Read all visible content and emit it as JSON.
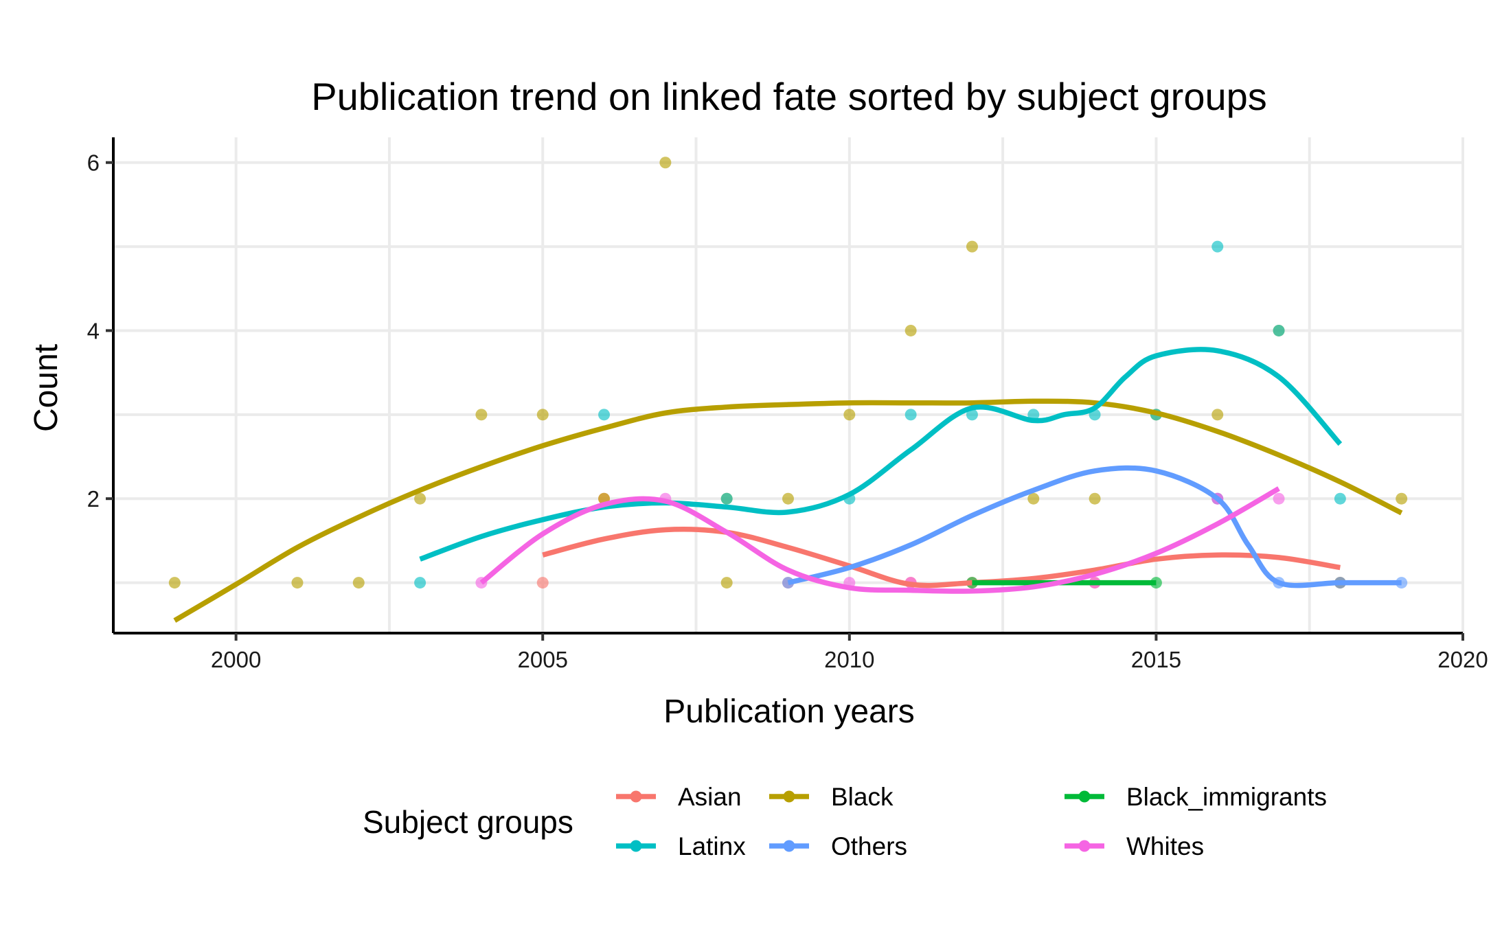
{
  "chart_data": {
    "type": "scatter",
    "title": "Publication trend on linked fate sorted by subject groups",
    "xlabel": "Publication years",
    "ylabel": "Count",
    "xlim": [
      1998,
      2020
    ],
    "ylim": [
      0.4,
      6.3
    ],
    "x_ticks": [
      2000,
      2005,
      2010,
      2015,
      2020
    ],
    "y_ticks": [
      2,
      4,
      6
    ],
    "grid": true,
    "legend": {
      "title": "Subject groups",
      "position": "bottom"
    },
    "series": [
      {
        "name": "Asian",
        "color": "#F8766D",
        "points": [
          [
            2005,
            1
          ],
          [
            2006,
            2
          ],
          [
            2009,
            1
          ],
          [
            2011,
            1
          ],
          [
            2012,
            1
          ],
          [
            2014,
            1
          ],
          [
            2016,
            2
          ],
          [
            2018,
            1
          ]
        ],
        "trend": [
          [
            2005,
            1.33
          ],
          [
            2006,
            1.52
          ],
          [
            2007,
            1.63
          ],
          [
            2008,
            1.6
          ],
          [
            2009,
            1.42
          ],
          [
            2010,
            1.2
          ],
          [
            2011,
            0.98
          ],
          [
            2012,
            1.0
          ],
          [
            2013,
            1.05
          ],
          [
            2014,
            1.15
          ],
          [
            2015,
            1.28
          ],
          [
            2016,
            1.33
          ],
          [
            2017,
            1.3
          ],
          [
            2018,
            1.18
          ]
        ]
      },
      {
        "name": "Black",
        "color": "#B79F00",
        "points": [
          [
            1999,
            1
          ],
          [
            2001,
            1
          ],
          [
            2002,
            1
          ],
          [
            2003,
            2
          ],
          [
            2004,
            3
          ],
          [
            2005,
            3
          ],
          [
            2006,
            2
          ],
          [
            2007,
            6
          ],
          [
            2008,
            1
          ],
          [
            2008,
            2
          ],
          [
            2009,
            2
          ],
          [
            2010,
            3
          ],
          [
            2011,
            4
          ],
          [
            2012,
            5
          ],
          [
            2013,
            2
          ],
          [
            2014,
            2
          ],
          [
            2015,
            3
          ],
          [
            2016,
            3
          ],
          [
            2017,
            4
          ],
          [
            2018,
            1
          ],
          [
            2019,
            2
          ]
        ],
        "trend": [
          [
            1999,
            0.55
          ],
          [
            2000,
            0.98
          ],
          [
            2001,
            1.42
          ],
          [
            2002,
            1.78
          ],
          [
            2003,
            2.1
          ],
          [
            2004,
            2.38
          ],
          [
            2005,
            2.63
          ],
          [
            2006,
            2.84
          ],
          [
            2007,
            3.02
          ],
          [
            2008,
            3.09
          ],
          [
            2009,
            3.12
          ],
          [
            2010,
            3.14
          ],
          [
            2011,
            3.14
          ],
          [
            2012,
            3.14
          ],
          [
            2013,
            3.16
          ],
          [
            2014,
            3.14
          ],
          [
            2015,
            3.02
          ],
          [
            2016,
            2.8
          ],
          [
            2017,
            2.52
          ],
          [
            2018,
            2.2
          ],
          [
            2019,
            1.83
          ]
        ]
      },
      {
        "name": "Black_immigrants",
        "color": "#00BA38",
        "points": [
          [
            2012,
            1
          ],
          [
            2013,
            1
          ],
          [
            2015,
            1
          ]
        ],
        "trend": [
          [
            2012,
            1.0
          ],
          [
            2015,
            1.0
          ]
        ]
      },
      {
        "name": "Latinx",
        "color": "#00BFC4",
        "points": [
          [
            2003,
            1
          ],
          [
            2006,
            3
          ],
          [
            2008,
            2
          ],
          [
            2010,
            2
          ],
          [
            2011,
            3
          ],
          [
            2012,
            3
          ],
          [
            2013,
            3
          ],
          [
            2014,
            3
          ],
          [
            2015,
            3
          ],
          [
            2016,
            5
          ],
          [
            2017,
            4
          ],
          [
            2018,
            2
          ]
        ],
        "trend": [
          [
            2003,
            1.28
          ],
          [
            2004,
            1.55
          ],
          [
            2005,
            1.75
          ],
          [
            2006,
            1.9
          ],
          [
            2007,
            1.95
          ],
          [
            2008,
            1.9
          ],
          [
            2009,
            1.84
          ],
          [
            2010,
            2.05
          ],
          [
            2011,
            2.58
          ],
          [
            2012,
            3.08
          ],
          [
            2013,
            2.93
          ],
          [
            2013.5,
            3.0
          ],
          [
            2014,
            3.08
          ],
          [
            2014.5,
            3.45
          ],
          [
            2015,
            3.7
          ],
          [
            2016,
            3.76
          ],
          [
            2017,
            3.45
          ],
          [
            2018,
            2.65
          ]
        ]
      },
      {
        "name": "Others",
        "color": "#619CFF",
        "points": [
          [
            2009,
            1
          ],
          [
            2016,
            2
          ],
          [
            2017,
            1
          ],
          [
            2018,
            1
          ],
          [
            2019,
            1
          ]
        ],
        "trend": [
          [
            2009,
            1.0
          ],
          [
            2010,
            1.18
          ],
          [
            2011,
            1.45
          ],
          [
            2012,
            1.8
          ],
          [
            2013,
            2.1
          ],
          [
            2014,
            2.33
          ],
          [
            2015,
            2.33
          ],
          [
            2016,
            2.0
          ],
          [
            2016.5,
            1.45
          ],
          [
            2017,
            1.0
          ],
          [
            2018,
            1.0
          ],
          [
            2019,
            1.0
          ]
        ]
      },
      {
        "name": "Whites",
        "color": "#F564E3",
        "points": [
          [
            2004,
            1
          ],
          [
            2007,
            2
          ],
          [
            2010,
            1
          ],
          [
            2011,
            1
          ],
          [
            2014,
            1
          ],
          [
            2016,
            2
          ],
          [
            2017,
            2
          ]
        ],
        "trend": [
          [
            2004,
            1.0
          ],
          [
            2005,
            1.58
          ],
          [
            2006,
            1.93
          ],
          [
            2007,
            1.97
          ],
          [
            2008,
            1.6
          ],
          [
            2009,
            1.15
          ],
          [
            2010,
            0.94
          ],
          [
            2011,
            0.91
          ],
          [
            2012,
            0.9
          ],
          [
            2013,
            0.95
          ],
          [
            2014,
            1.1
          ],
          [
            2015,
            1.35
          ],
          [
            2016,
            1.7
          ],
          [
            2017,
            2.12
          ]
        ]
      }
    ]
  }
}
